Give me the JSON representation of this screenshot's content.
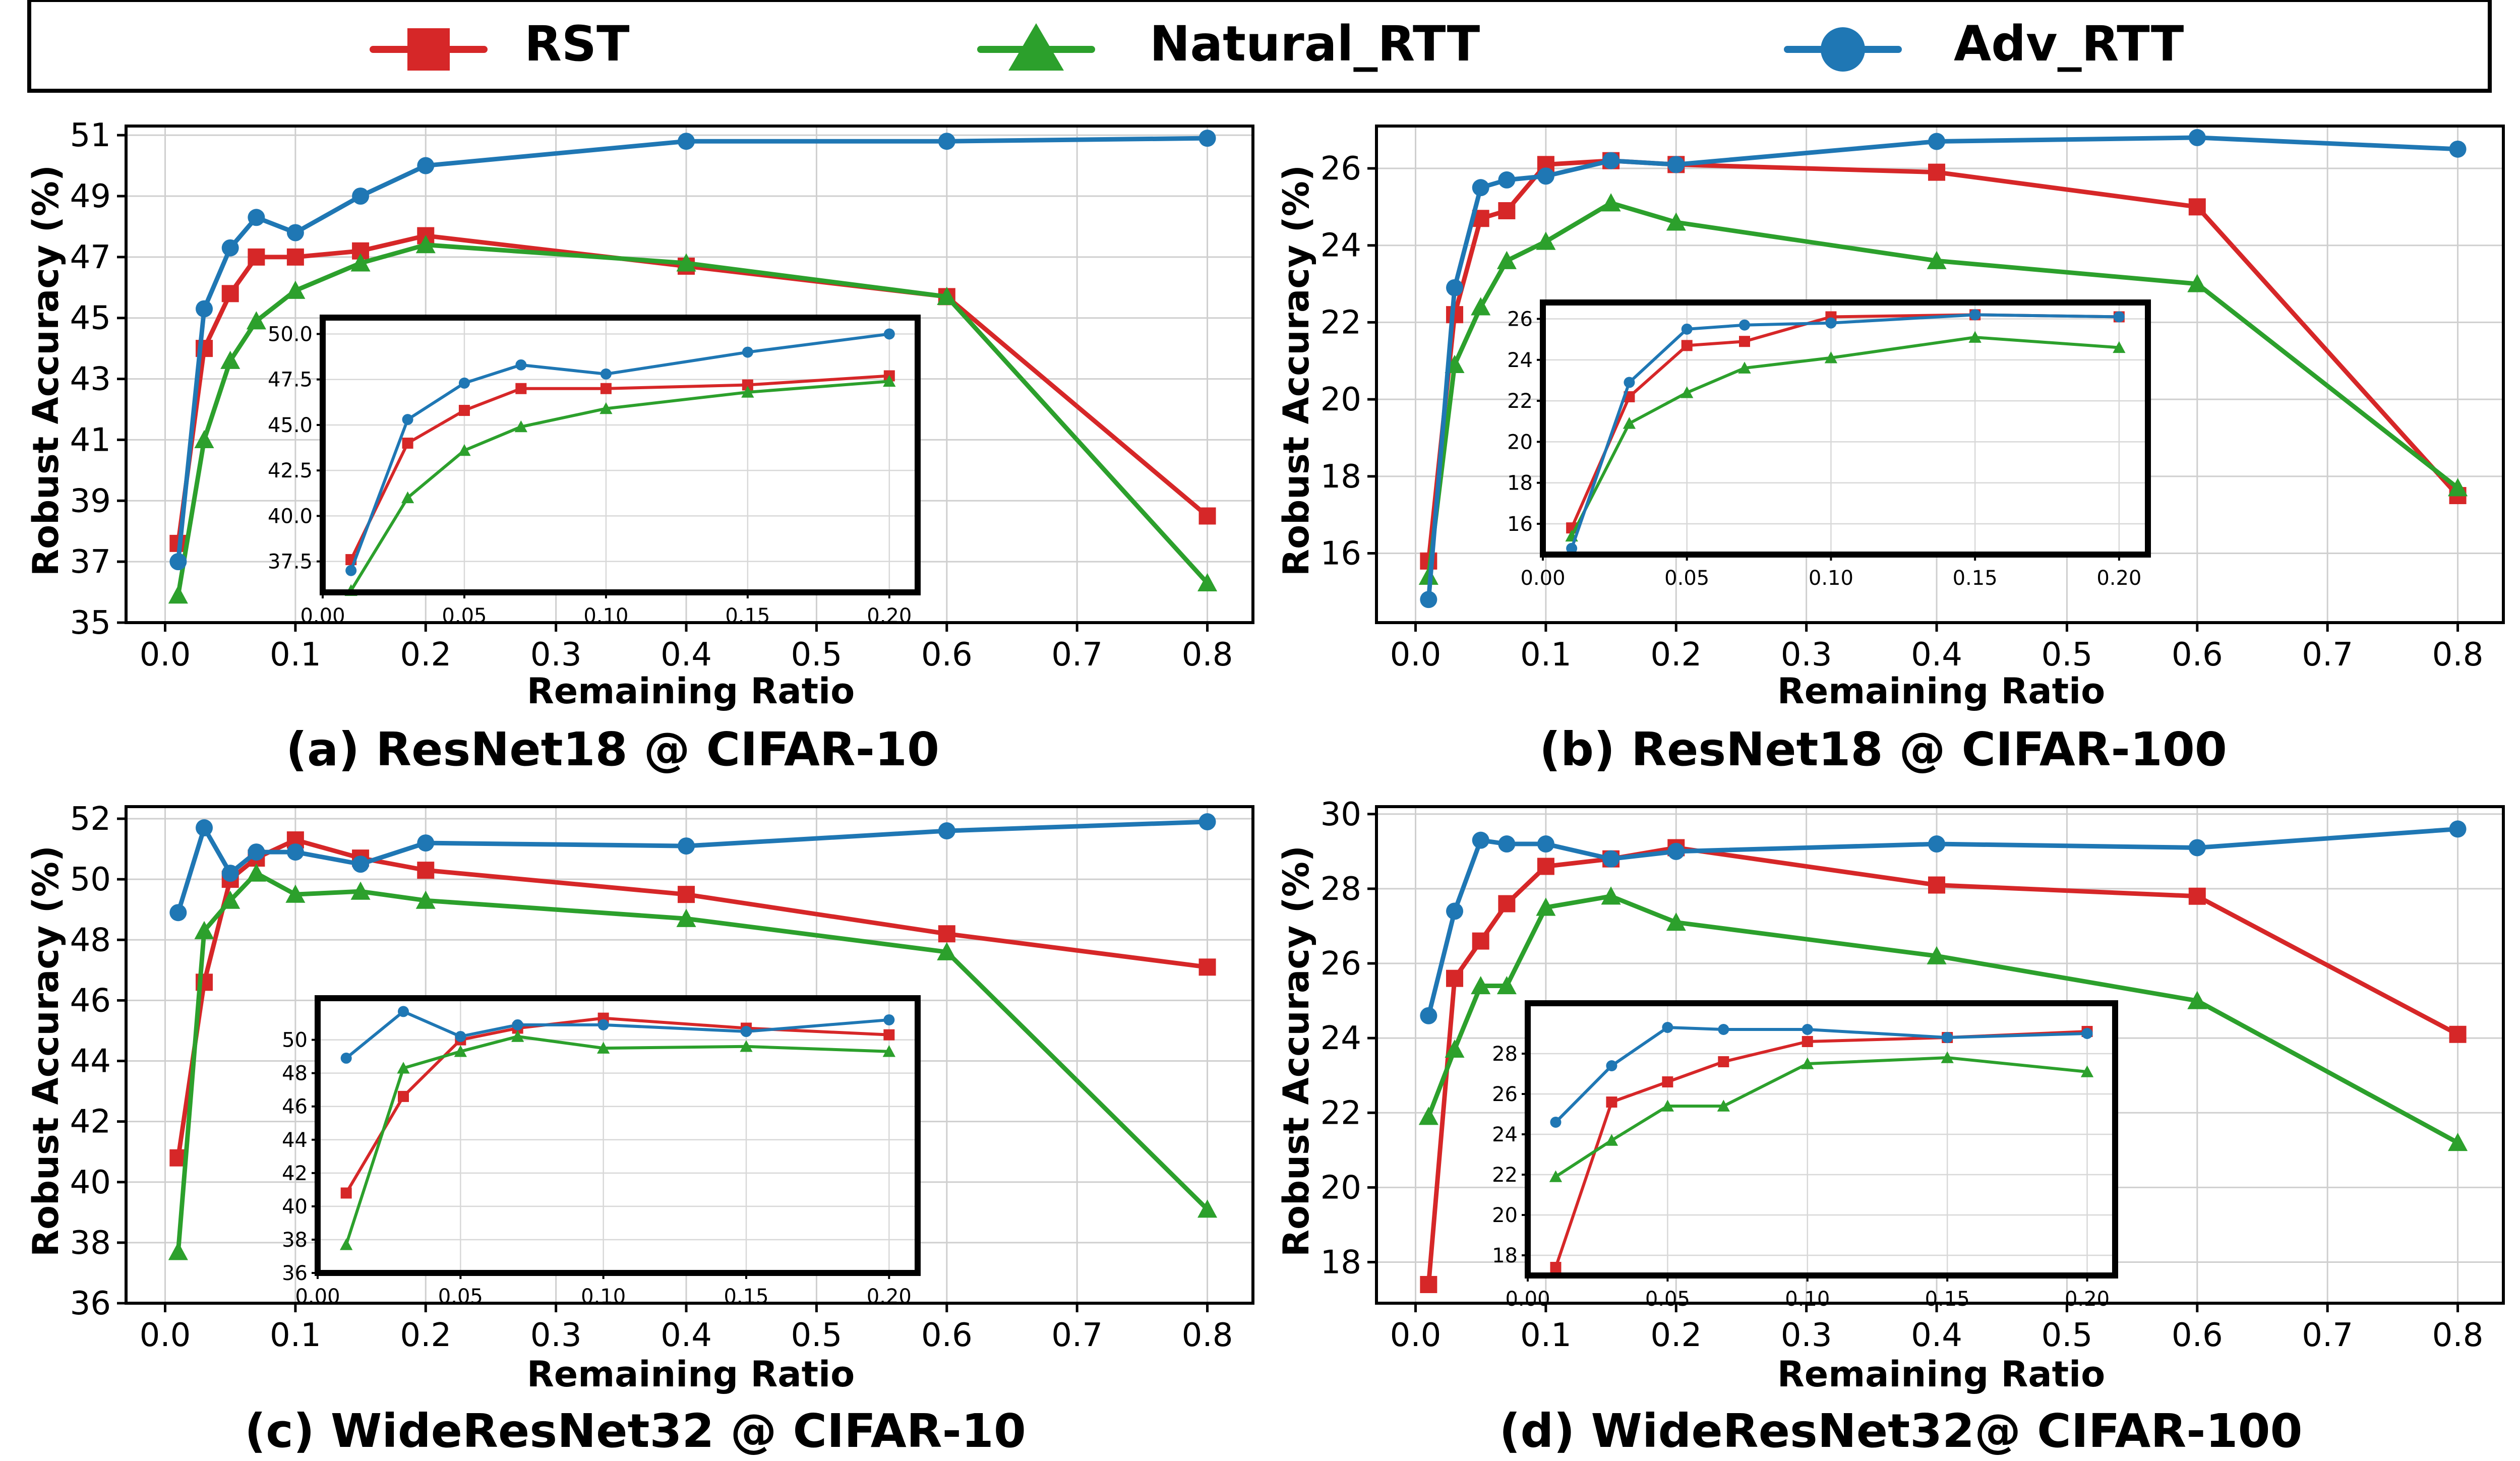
{
  "legend": [
    {
      "name": "RST",
      "color": "#d62728",
      "marker": "square"
    },
    {
      "name": "Natural_RTT",
      "color": "#2ca02c",
      "marker": "triangle"
    },
    {
      "name": "Adv_RTT",
      "color": "#1f77b4",
      "marker": "circle"
    }
  ],
  "chart_data": [
    {
      "type": "line",
      "caption": "(a) ResNet18 @ CIFAR-10",
      "xlabel": "Remaining Ratio",
      "ylabel": "Robust Accuracy (%)",
      "grid": true,
      "xlim": [
        -0.03,
        0.835
      ],
      "ylim": [
        35,
        51.3
      ],
      "xticks": [
        0.0,
        0.1,
        0.2,
        0.3,
        0.4,
        0.5,
        0.6,
        0.7,
        0.8
      ],
      "yticks": [
        35,
        37,
        39,
        41,
        43,
        45,
        47,
        49,
        51
      ],
      "x": [
        0.01,
        0.03,
        0.05,
        0.07,
        0.1,
        0.15,
        0.2,
        0.4,
        0.6,
        0.8
      ],
      "series": [
        {
          "name": "RST",
          "color": "#d62728",
          "marker": "square",
          "values": [
            37.6,
            44.0,
            45.8,
            47.0,
            47.0,
            47.2,
            47.7,
            46.7,
            45.7,
            38.5
          ]
        },
        {
          "name": "Natural_RTT",
          "color": "#2ca02c",
          "marker": "triangle",
          "values": [
            35.9,
            41.0,
            43.6,
            44.9,
            45.9,
            46.8,
            47.4,
            46.8,
            45.7,
            36.3
          ]
        },
        {
          "name": "Adv_RTT",
          "color": "#1f77b4",
          "marker": "circle",
          "values": [
            37.0,
            45.3,
            47.3,
            48.3,
            47.8,
            49.0,
            50.0,
            50.8,
            50.8,
            50.9
          ]
        }
      ],
      "inset": {
        "xlim": [
          0.0,
          0.21
        ],
        "ylim": [
          35.8,
          50.9
        ],
        "xticks": [
          0.0,
          0.05,
          0.1,
          0.15,
          0.2
        ],
        "xtick_labels": [
          "0.00",
          "0.05",
          "0.10",
          "0.15",
          "0.20"
        ],
        "yticks": [
          37.5,
          40.0,
          42.5,
          45.0,
          47.5,
          50.0
        ],
        "ytick_labels": [
          "37.5",
          "40.0",
          "42.5",
          "45.0",
          "47.5",
          "50.0"
        ],
        "x": [
          0.01,
          0.03,
          0.05,
          0.07,
          0.1,
          0.15,
          0.2
        ],
        "series": [
          {
            "name": "RST",
            "values": [
              37.6,
              44.0,
              45.8,
              47.0,
              47.0,
              47.2,
              47.7
            ]
          },
          {
            "name": "Natural_RTT",
            "values": [
              35.9,
              41.0,
              43.6,
              44.9,
              45.9,
              46.8,
              47.4
            ]
          },
          {
            "name": "Adv_RTT",
            "values": [
              37.0,
              45.3,
              47.3,
              48.3,
              47.8,
              49.0,
              50.0
            ]
          }
        ]
      }
    },
    {
      "type": "line",
      "caption": "(b) ResNet18 @ CIFAR-100",
      "xlabel": "Remaining Ratio",
      "ylabel": "Robust Accuracy (%)",
      "grid": true,
      "xlim": [
        -0.03,
        0.835
      ],
      "ylim": [
        14.2,
        27.1
      ],
      "xticks": [
        0.0,
        0.1,
        0.2,
        0.3,
        0.4,
        0.5,
        0.6,
        0.7,
        0.8
      ],
      "yticks": [
        16,
        18,
        20,
        22,
        24,
        26
      ],
      "x": [
        0.01,
        0.03,
        0.05,
        0.07,
        0.1,
        0.15,
        0.2,
        0.4,
        0.6,
        0.8
      ],
      "series": [
        {
          "name": "RST",
          "color": "#d62728",
          "marker": "square",
          "values": [
            15.8,
            22.2,
            24.7,
            24.9,
            26.1,
            26.2,
            26.1,
            25.9,
            25.0,
            17.5
          ]
        },
        {
          "name": "Natural_RTT",
          "color": "#2ca02c",
          "marker": "triangle",
          "values": [
            15.4,
            20.9,
            22.4,
            23.6,
            24.1,
            25.1,
            24.6,
            23.6,
            23.0,
            17.7
          ]
        },
        {
          "name": "Adv_RTT",
          "color": "#1f77b4",
          "marker": "circle",
          "values": [
            14.8,
            22.9,
            25.5,
            25.7,
            25.8,
            26.2,
            26.1,
            26.7,
            26.8,
            26.5
          ]
        }
      ],
      "inset": {
        "xlim": [
          0.0,
          0.21
        ],
        "ylim": [
          14.5,
          26.8
        ],
        "xticks": [
          0.0,
          0.05,
          0.1,
          0.15,
          0.2
        ],
        "xtick_labels": [
          "0.00",
          "0.05",
          "0.10",
          "0.15",
          "0.20"
        ],
        "yticks": [
          16,
          18,
          20,
          22,
          24,
          26
        ],
        "ytick_labels": [
          "16",
          "18",
          "20",
          "22",
          "24",
          "26"
        ],
        "x": [
          0.01,
          0.03,
          0.05,
          0.07,
          0.1,
          0.15,
          0.2
        ],
        "series": [
          {
            "name": "RST",
            "values": [
              15.8,
              22.2,
              24.7,
              24.9,
              26.1,
              26.2,
              26.1
            ]
          },
          {
            "name": "Natural_RTT",
            "values": [
              15.4,
              20.9,
              22.4,
              23.6,
              24.1,
              25.1,
              24.6
            ]
          },
          {
            "name": "Adv_RTT",
            "values": [
              14.8,
              22.9,
              25.5,
              25.7,
              25.8,
              26.2,
              26.1
            ]
          }
        ]
      }
    },
    {
      "type": "line",
      "caption": "(c) WideResNet32 @ CIFAR-10",
      "xlabel": "Remaining Ratio",
      "ylabel": "Robust Accuracy (%)",
      "grid": true,
      "xlim": [
        -0.03,
        0.835
      ],
      "ylim": [
        36,
        52.4
      ],
      "xticks": [
        0.0,
        0.1,
        0.2,
        0.3,
        0.4,
        0.5,
        0.6,
        0.7,
        0.8
      ],
      "yticks": [
        36,
        38,
        40,
        42,
        44,
        46,
        48,
        50,
        52
      ],
      "x": [
        0.01,
        0.03,
        0.05,
        0.07,
        0.1,
        0.15,
        0.2,
        0.4,
        0.6,
        0.8
      ],
      "series": [
        {
          "name": "RST",
          "color": "#d62728",
          "marker": "square",
          "values": [
            40.8,
            46.6,
            50.0,
            50.7,
            51.3,
            50.7,
            50.3,
            49.5,
            48.2,
            47.1
          ]
        },
        {
          "name": "Natural_RTT",
          "color": "#2ca02c",
          "marker": "triangle",
          "values": [
            37.7,
            48.3,
            49.3,
            50.2,
            49.5,
            49.6,
            49.3,
            48.7,
            47.6,
            39.1
          ]
        },
        {
          "name": "Adv_RTT",
          "color": "#1f77b4",
          "marker": "circle",
          "values": [
            48.9,
            51.7,
            50.2,
            50.9,
            50.9,
            50.5,
            51.2,
            51.1,
            51.6,
            51.9
          ]
        }
      ],
      "inset": {
        "xlim": [
          0.0,
          0.21
        ],
        "ylim": [
          36,
          52.5
        ],
        "xticks": [
          0.0,
          0.05,
          0.1,
          0.15,
          0.2
        ],
        "xtick_labels": [
          "0.00",
          "0.05",
          "0.10",
          "0.15",
          "0.20"
        ],
        "yticks": [
          36,
          38,
          40,
          42,
          44,
          46,
          48,
          50
        ],
        "ytick_labels": [
          "36",
          "38",
          "40",
          "42",
          "44",
          "46",
          "48",
          "50"
        ],
        "x": [
          0.01,
          0.03,
          0.05,
          0.07,
          0.1,
          0.15,
          0.2
        ],
        "series": [
          {
            "name": "RST",
            "values": [
              40.8,
              46.6,
              50.0,
              50.7,
              51.3,
              50.7,
              50.3
            ]
          },
          {
            "name": "Natural_RTT",
            "values": [
              37.7,
              48.3,
              49.3,
              50.2,
              49.5,
              49.6,
              49.3
            ]
          },
          {
            "name": "Adv_RTT",
            "values": [
              48.9,
              51.7,
              50.2,
              50.9,
              50.9,
              50.5,
              51.2
            ]
          }
        ]
      }
    },
    {
      "type": "line",
      "caption": "(d) WideResNet32@ CIFAR-100",
      "xlabel": "Remaining Ratio",
      "ylabel": "Robust Accuracy (%)",
      "grid": true,
      "xlim": [
        -0.03,
        0.835
      ],
      "ylim": [
        16.9,
        30.2
      ],
      "xticks": [
        0.0,
        0.1,
        0.2,
        0.3,
        0.4,
        0.5,
        0.6,
        0.7,
        0.8
      ],
      "yticks": [
        18,
        20,
        22,
        24,
        26,
        28,
        30
      ],
      "x": [
        0.01,
        0.03,
        0.05,
        0.07,
        0.1,
        0.15,
        0.2,
        0.4,
        0.6,
        0.8
      ],
      "series": [
        {
          "name": "RST",
          "color": "#d62728",
          "marker": "square",
          "values": [
            17.4,
            25.6,
            26.6,
            27.6,
            28.6,
            28.8,
            29.1,
            28.1,
            27.8,
            24.1
          ]
        },
        {
          "name": "Natural_RTT",
          "color": "#2ca02c",
          "marker": "triangle",
          "values": [
            21.9,
            23.7,
            25.4,
            25.4,
            27.5,
            27.8,
            27.1,
            26.2,
            25.0,
            21.2
          ]
        },
        {
          "name": "Adv_RTT",
          "color": "#1f77b4",
          "marker": "circle",
          "values": [
            24.6,
            27.4,
            29.3,
            29.2,
            29.2,
            28.8,
            29.0,
            29.2,
            29.1,
            29.6
          ]
        }
      ],
      "inset": {
        "xlim": [
          0.0,
          0.21
        ],
        "ylim": [
          17,
          30.5
        ],
        "xticks": [
          0.0,
          0.05,
          0.1,
          0.15,
          0.2
        ],
        "xtick_labels": [
          "0.00",
          "0.05",
          "0.10",
          "0.15",
          "0.20"
        ],
        "yticks": [
          18,
          20,
          22,
          24,
          26,
          28
        ],
        "ytick_labels": [
          "18",
          "20",
          "22",
          "24",
          "26",
          "28"
        ],
        "x": [
          0.01,
          0.03,
          0.05,
          0.07,
          0.1,
          0.15,
          0.2
        ],
        "series": [
          {
            "name": "RST",
            "values": [
              17.4,
              25.6,
              26.6,
              27.6,
              28.6,
              28.8,
              29.1
            ]
          },
          {
            "name": "Natural_RTT",
            "values": [
              21.9,
              23.7,
              25.4,
              25.4,
              27.5,
              27.8,
              27.1
            ]
          },
          {
            "name": "Adv_RTT",
            "values": [
              24.6,
              27.4,
              29.3,
              29.2,
              29.2,
              28.8,
              29.0
            ]
          }
        ]
      }
    }
  ]
}
